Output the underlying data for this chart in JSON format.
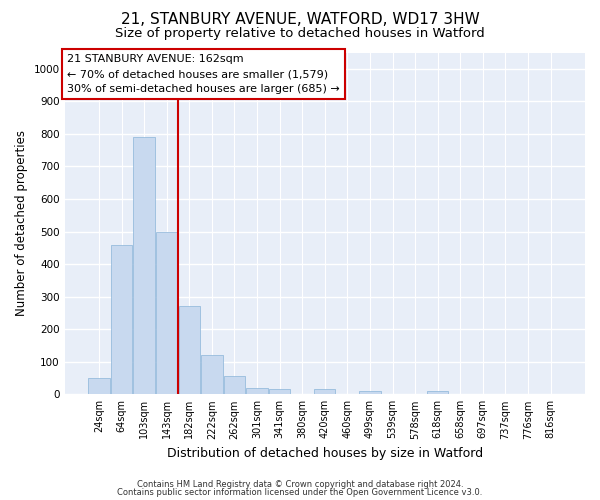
{
  "title_line1": "21, STANBURY AVENUE, WATFORD, WD17 3HW",
  "title_line2": "Size of property relative to detached houses in Watford",
  "xlabel": "Distribution of detached houses by size in Watford",
  "ylabel": "Number of detached properties",
  "categories": [
    "24sqm",
    "64sqm",
    "103sqm",
    "143sqm",
    "182sqm",
    "222sqm",
    "262sqm",
    "301sqm",
    "341sqm",
    "380sqm",
    "420sqm",
    "460sqm",
    "499sqm",
    "539sqm",
    "578sqm",
    "618sqm",
    "658sqm",
    "697sqm",
    "737sqm",
    "776sqm",
    "816sqm"
  ],
  "values": [
    50,
    460,
    790,
    500,
    270,
    120,
    55,
    20,
    15,
    0,
    15,
    0,
    10,
    0,
    0,
    10,
    0,
    0,
    0,
    0,
    0
  ],
  "bar_color": "#c8d9ef",
  "bar_edge_color": "#8ab4d8",
  "ylim": [
    0,
    1050
  ],
  "yticks": [
    0,
    100,
    200,
    300,
    400,
    500,
    600,
    700,
    800,
    900,
    1000
  ],
  "vline_x_index": 3.5,
  "vline_color": "#cc0000",
  "annotation_line1": "21 STANBURY AVENUE: 162sqm",
  "annotation_line2": "← 70% of detached houses are smaller (1,579)",
  "annotation_line3": "30% of semi-detached houses are larger (685) →",
  "annotation_box_color": "#cc0000",
  "footer_line1": "Contains HM Land Registry data © Crown copyright and database right 2024.",
  "footer_line2": "Contains public sector information licensed under the Open Government Licence v3.0.",
  "plot_bg_color": "#e8eef8",
  "fig_bg_color": "#ffffff",
  "grid_color": "#ffffff",
  "title_fontsize": 11,
  "subtitle_fontsize": 9.5,
  "tick_fontsize": 7,
  "ylabel_fontsize": 8.5,
  "xlabel_fontsize": 9,
  "footer_fontsize": 6,
  "annotation_fontsize": 8
}
